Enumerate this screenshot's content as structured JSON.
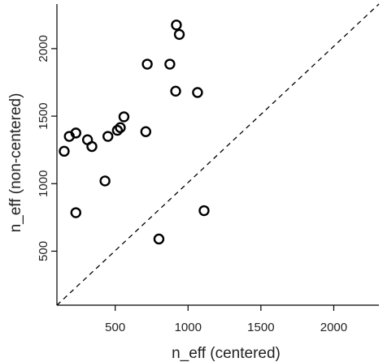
{
  "chart_data": {
    "type": "scatter",
    "title": "",
    "xlabel": "n_eff (centered)",
    "ylabel": "n_eff (non-centered)",
    "xlim": [
      100,
      2310
    ],
    "ylim": [
      100,
      2330
    ],
    "x_ticks": [
      500,
      1000,
      1500,
      2000
    ],
    "y_ticks": [
      500,
      1000,
      1500,
      2000
    ],
    "grid": false,
    "reference_line": {
      "style": "dashed",
      "from": [
        100,
        100
      ],
      "to": [
        2310,
        2330
      ]
    },
    "marker": "open-circle",
    "points": [
      {
        "x": 920,
        "y": 2175
      },
      {
        "x": 940,
        "y": 2105
      },
      {
        "x": 720,
        "y": 1885
      },
      {
        "x": 875,
        "y": 1885
      },
      {
        "x": 915,
        "y": 1685
      },
      {
        "x": 1065,
        "y": 1675
      },
      {
        "x": 560,
        "y": 1495
      },
      {
        "x": 535,
        "y": 1415
      },
      {
        "x": 515,
        "y": 1395
      },
      {
        "x": 710,
        "y": 1385
      },
      {
        "x": 230,
        "y": 1375
      },
      {
        "x": 185,
        "y": 1350
      },
      {
        "x": 450,
        "y": 1350
      },
      {
        "x": 310,
        "y": 1325
      },
      {
        "x": 340,
        "y": 1275
      },
      {
        "x": 150,
        "y": 1240
      },
      {
        "x": 430,
        "y": 1020
      },
      {
        "x": 1110,
        "y": 800
      },
      {
        "x": 230,
        "y": 785
      },
      {
        "x": 800,
        "y": 590
      }
    ]
  }
}
